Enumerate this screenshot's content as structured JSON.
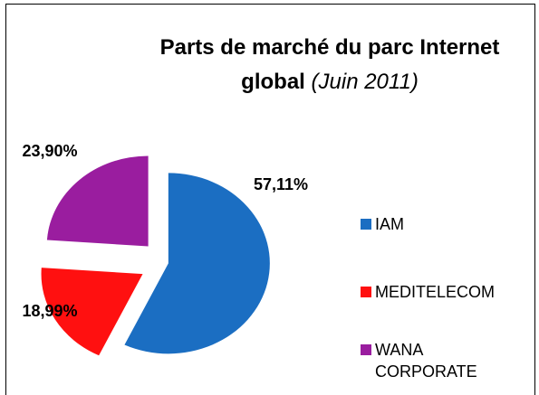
{
  "chart_data": {
    "type": "pie",
    "title": "Parts de marché du parc Internet global",
    "subtitle": "(Juin 2011)",
    "categories": [
      "IAM",
      "MEDITELECOM",
      "WANA CORPORATE"
    ],
    "values": [
      57.11,
      18.99,
      23.9
    ],
    "value_labels": [
      "57,11%",
      "18,99%",
      "23,90%"
    ],
    "colors": [
      "#1b6ec2",
      "#ff1010",
      "#9a1d9f"
    ],
    "legend": "right"
  }
}
